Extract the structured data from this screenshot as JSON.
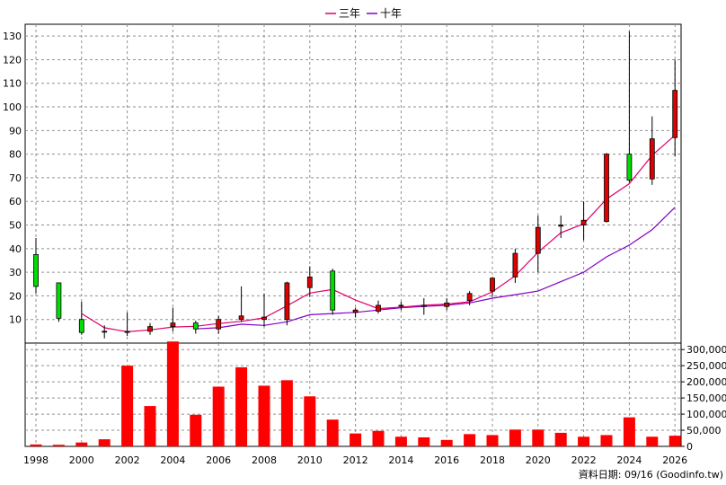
{
  "chart_data": {
    "type": "candlestick",
    "legend": [
      {
        "name": "三年",
        "color": "#e0006a"
      },
      {
        "name": "十年",
        "color": "#8000c8"
      }
    ],
    "colors": {
      "up": "#e00000",
      "down": "#00dd00",
      "volume": "#ff0000"
    },
    "source_note": "資料日期: 09/16 (Goodinfo.tw)",
    "price_axis": {
      "min": 0,
      "max": 135,
      "ticks": [
        10,
        20,
        30,
        40,
        50,
        60,
        70,
        80,
        90,
        100,
        110,
        120,
        130
      ]
    },
    "volume_axis": {
      "min": 0,
      "max": 320000,
      "ticks": [
        0,
        50000,
        100000,
        150000,
        200000,
        250000,
        300000
      ],
      "tick_labels": [
        "0",
        "50,000",
        "100,000",
        "150,000",
        "200,000",
        "250,000",
        "300,000"
      ]
    },
    "x_labels": [
      "1998",
      "2000",
      "2002",
      "2004",
      "2006",
      "2008",
      "2010",
      "2012",
      "2014",
      "2016",
      "2018",
      "2020",
      "2022",
      "2024",
      "2026"
    ],
    "grid": true,
    "candles": [
      {
        "year": 1998,
        "open": 37.5,
        "high": 44.5,
        "low": 21,
        "close": 24
      },
      {
        "year": 1999,
        "open": 25.5,
        "high": 25.5,
        "low": 9,
        "close": 10.5
      },
      {
        "year": 2000,
        "open": 10,
        "high": 17.5,
        "low": 3.5,
        "close": 4.5
      },
      {
        "year": 2001,
        "open": 5,
        "high": 7.5,
        "low": 2,
        "close": 5
      },
      {
        "year": 2002,
        "open": 4.5,
        "high": 13,
        "low": 3,
        "close": 5
      },
      {
        "year": 2003,
        "open": 5,
        "high": 8.5,
        "low": 3.5,
        "close": 7
      },
      {
        "year": 2004,
        "open": 7,
        "high": 15,
        "low": 5,
        "close": 8.5
      },
      {
        "year": 2005,
        "open": 8.5,
        "high": 9.5,
        "low": 4,
        "close": 6
      },
      {
        "year": 2006,
        "open": 6,
        "high": 11.5,
        "low": 4,
        "close": 10
      },
      {
        "year": 2007,
        "open": 10,
        "high": 24,
        "low": 9,
        "close": 11.5
      },
      {
        "year": 2008,
        "open": 10,
        "high": 21,
        "low": 7,
        "close": 11
      },
      {
        "year": 2009,
        "open": 10,
        "high": 26,
        "low": 7.5,
        "close": 25.5
      },
      {
        "year": 2010,
        "open": 23.5,
        "high": 32.5,
        "low": 19.5,
        "close": 28
      },
      {
        "year": 2011,
        "open": 30.5,
        "high": 31.5,
        "low": 12,
        "close": 14
      },
      {
        "year": 2012,
        "open": 13,
        "high": 15,
        "low": 11,
        "close": 14
      },
      {
        "year": 2013,
        "open": 13.5,
        "high": 18,
        "low": 12.5,
        "close": 16
      },
      {
        "year": 2014,
        "open": 16,
        "high": 17.5,
        "low": 14,
        "close": 16
      },
      {
        "year": 2015,
        "open": 15.5,
        "high": 19,
        "low": 12,
        "close": 16
      },
      {
        "year": 2016,
        "open": 15.5,
        "high": 19,
        "low": 14,
        "close": 17
      },
      {
        "year": 2017,
        "open": 18,
        "high": 22,
        "low": 16,
        "close": 21
      },
      {
        "year": 2018,
        "open": 22,
        "high": 28,
        "low": 19.5,
        "close": 27.5
      },
      {
        "year": 2019,
        "open": 28,
        "high": 40,
        "low": 25.5,
        "close": 38
      },
      {
        "year": 2020,
        "open": 38,
        "high": 54,
        "low": 30,
        "close": 49
      },
      {
        "year": 2021,
        "open": 49.5,
        "high": 54,
        "low": 44.5,
        "close": 50
      },
      {
        "year": 2022,
        "open": 50,
        "high": 60,
        "low": 43.5,
        "close": 52
      },
      {
        "year": 2023,
        "open": 51.5,
        "high": 80.5,
        "low": 51,
        "close": 80
      },
      {
        "year": 2024,
        "open": 80,
        "high": 132,
        "low": 68,
        "close": 69
      },
      {
        "year": 2025,
        "open": 69.5,
        "high": 96,
        "low": 67,
        "close": 86.5
      },
      {
        "year": 2026,
        "open": 87,
        "high": 120,
        "low": 79,
        "close": 107
      }
    ],
    "volume": [
      6000,
      5000,
      12000,
      22000,
      250000,
      125000,
      325000,
      98000,
      185000,
      245000,
      188000,
      205000,
      155000,
      83000,
      40000,
      48000,
      30000,
      28000,
      20000,
      38000,
      35000,
      52000,
      52000,
      42000,
      30000,
      35000,
      90000,
      30000,
      33000
    ],
    "ma3": [
      null,
      null,
      12.5,
      6.5,
      4.8,
      5.6,
      6.8,
      7.1,
      8.3,
      9.2,
      10.7,
      15.8,
      21.2,
      22.7,
      18.2,
      14.6,
      15.2,
      16.0,
      16.5,
      17.5,
      21.7,
      28.5,
      38.5,
      46.7,
      50.5,
      61.0,
      67.5,
      79.5,
      88.0
    ],
    "ma10": [
      null,
      null,
      null,
      null,
      null,
      null,
      null,
      6.0,
      6.5,
      8.0,
      7.5,
      9.0,
      12.0,
      12.5,
      13.0,
      14.0,
      15.0,
      15.5,
      16.0,
      17.0,
      19.0,
      20.5,
      22.0,
      26.0,
      30.0,
      36.5,
      41.5,
      48.0,
      57.5
    ]
  }
}
